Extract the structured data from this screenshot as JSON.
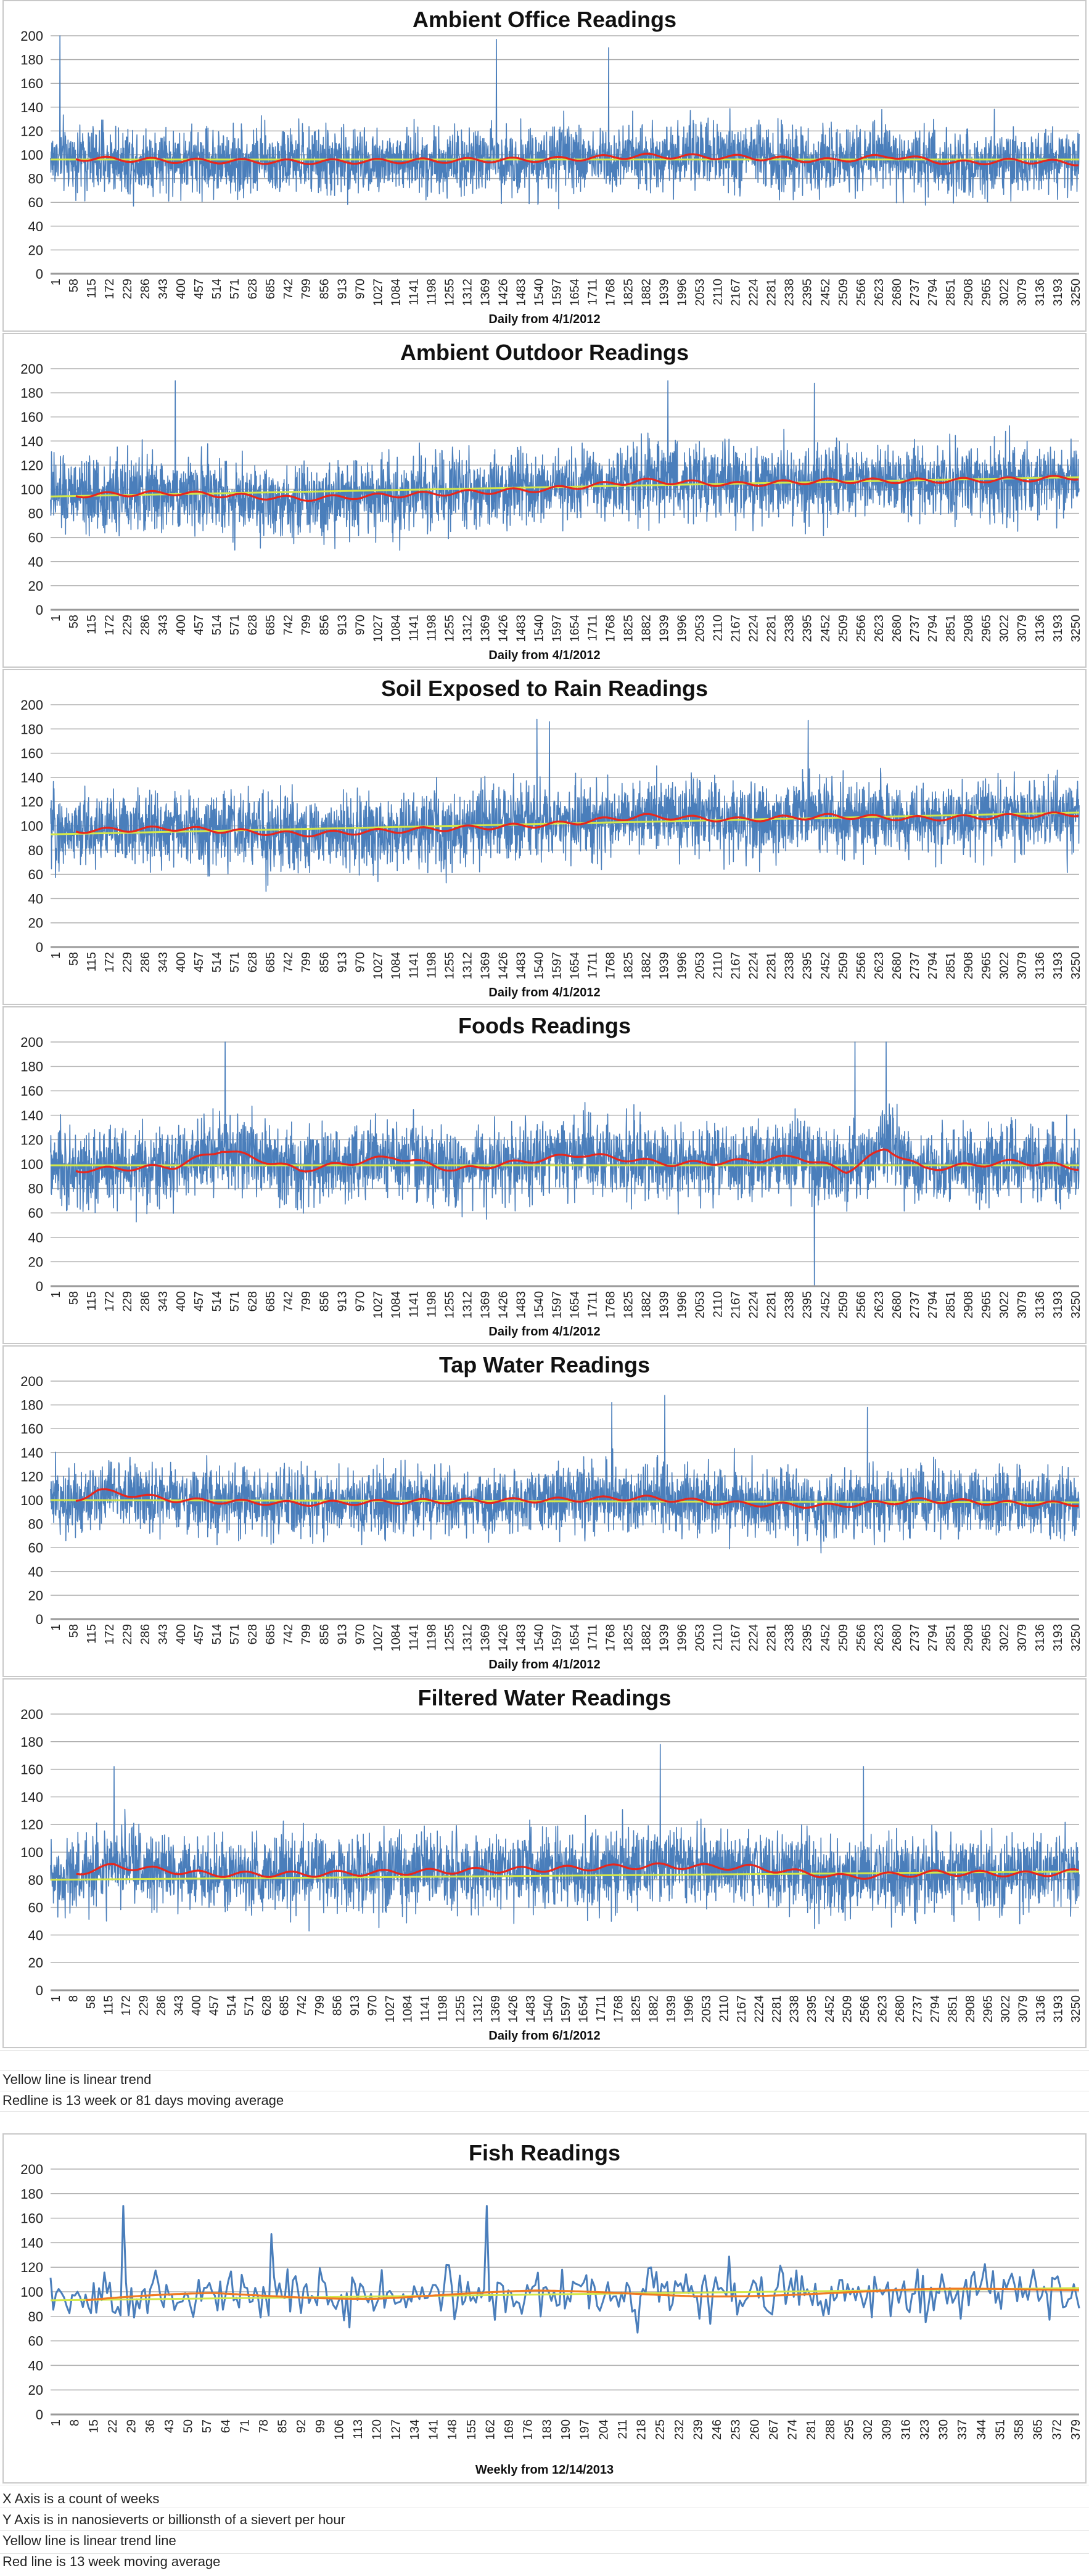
{
  "notes_top": [
    "Yellow line is linear trend",
    "Redline is 13 week or 81 days moving average"
  ],
  "notes_bottom": [
    "X Axis is a count of weeks",
    "Y Axis is in nanosieverts or billionsth of a sievert per hour",
    "Yellow line is linear trend line",
    "Red line is 13 week moving average"
  ],
  "colors": {
    "series": "#4a7ebb",
    "moving_average": "#e8261c",
    "moving_average_fish": "#f07a22",
    "trend": "#d4e84a",
    "grid": "#b0b0b0"
  },
  "chart_data": [
    {
      "type": "line",
      "title": "Ambient Office Readings",
      "xlabel": "Daily from 4/1/2012",
      "ylabel": "",
      "ylim": [
        0,
        200
      ],
      "yticks": [
        0,
        20,
        40,
        60,
        80,
        100,
        120,
        140,
        160,
        180,
        200
      ],
      "x_tick_labels": [
        "1",
        "58",
        "115",
        "172",
        "229",
        "286",
        "343",
        "400",
        "457",
        "514",
        "571",
        "628",
        "685",
        "742",
        "799",
        "856",
        "913",
        "970",
        "1027",
        "1084",
        "1141",
        "1198",
        "1255",
        "1312",
        "1369",
        "1426",
        "1483",
        "1540",
        "1597",
        "1654",
        "1711",
        "1768",
        "1825",
        "1882",
        "1939",
        "1996",
        "2053",
        "2110",
        "2167",
        "2224",
        "2281",
        "2338",
        "2395",
        "2452",
        "2509",
        "2566",
        "2623",
        "2680",
        "2737",
        "2794",
        "2851",
        "2908",
        "2965",
        "3022",
        "3079",
        "3136",
        "3193",
        "3250"
      ],
      "n_points": 3300,
      "mean": 96,
      "spread": 20,
      "peaks": [
        [
          30,
          200
        ],
        [
          1430,
          197
        ],
        [
          1790,
          190
        ]
      ],
      "moving_average": {
        "name": "13 week or 81 days moving average",
        "points": [
          [
            81,
            97
          ],
          [
            400,
            95
          ],
          [
            800,
            94
          ],
          [
            1200,
            95
          ],
          [
            1600,
            96
          ],
          [
            1900,
            99
          ],
          [
            2200,
            98
          ],
          [
            2500,
            95
          ],
          [
            2700,
            99
          ],
          [
            2900,
            93
          ],
          [
            3100,
            95
          ],
          [
            3300,
            93
          ]
        ]
      },
      "trend": {
        "start": 96,
        "end": 96
      }
    },
    {
      "type": "line",
      "title": "Ambient Outdoor Readings",
      "xlabel": "Daily from 4/1/2012",
      "ylabel": "",
      "ylim": [
        0,
        200
      ],
      "yticks": [
        0,
        20,
        40,
        60,
        80,
        100,
        120,
        140,
        160,
        180,
        200
      ],
      "x_tick_labels": [
        "1",
        "58",
        "115",
        "172",
        "229",
        "286",
        "343",
        "400",
        "457",
        "514",
        "571",
        "628",
        "685",
        "742",
        "799",
        "856",
        "913",
        "970",
        "1027",
        "1084",
        "1141",
        "1198",
        "1255",
        "1312",
        "1369",
        "1426",
        "1483",
        "1540",
        "1597",
        "1654",
        "1711",
        "1768",
        "1825",
        "1882",
        "1939",
        "1996",
        "2053",
        "2110",
        "2167",
        "2224",
        "2281",
        "2338",
        "2395",
        "2452",
        "2509",
        "2566",
        "2623",
        "2680",
        "2737",
        "2794",
        "2851",
        "2908",
        "2965",
        "3022",
        "3079",
        "3136",
        "3193",
        "3250"
      ],
      "n_points": 3300,
      "mean": 102,
      "spread": 22,
      "peaks": [
        [
          400,
          190
        ],
        [
          1980,
          190
        ],
        [
          2450,
          188
        ]
      ],
      "moving_average": {
        "name": "13 week or 81 days moving average",
        "points": [
          [
            81,
            95
          ],
          [
            400,
            97
          ],
          [
            800,
            92
          ],
          [
            1200,
            96
          ],
          [
            1600,
            100
          ],
          [
            1900,
            107
          ],
          [
            2200,
            104
          ],
          [
            2500,
            107
          ],
          [
            2800,
            107
          ],
          [
            3100,
            108
          ],
          [
            3300,
            110
          ]
        ]
      },
      "trend": {
        "start": 94,
        "end": 110
      }
    },
    {
      "type": "line",
      "title": "Soil Exposed to Rain Readings",
      "xlabel": "Daily from 4/1/2012",
      "ylabel": "",
      "ylim": [
        0,
        200
      ],
      "yticks": [
        0,
        20,
        40,
        60,
        80,
        100,
        120,
        140,
        160,
        180,
        200
      ],
      "x_tick_labels": [
        "1",
        "58",
        "115",
        "172",
        "229",
        "286",
        "343",
        "400",
        "457",
        "514",
        "571",
        "628",
        "685",
        "742",
        "799",
        "856",
        "913",
        "970",
        "1027",
        "1084",
        "1141",
        "1198",
        "1255",
        "1312",
        "1369",
        "1426",
        "1483",
        "1540",
        "1597",
        "1654",
        "1711",
        "1768",
        "1825",
        "1882",
        "1939",
        "1996",
        "2053",
        "2110",
        "2167",
        "2224",
        "2281",
        "2338",
        "2395",
        "2452",
        "2509",
        "2566",
        "2623",
        "2680",
        "2737",
        "2794",
        "2851",
        "2908",
        "2965",
        "3022",
        "3079",
        "3136",
        "3193",
        "3250"
      ],
      "n_points": 3300,
      "mean": 102,
      "spread": 22,
      "peaks": [
        [
          1560,
          188
        ],
        [
          1600,
          186
        ],
        [
          2430,
          187
        ]
      ],
      "moving_average": {
        "name": "13 week or 81 days moving average",
        "points": [
          [
            81,
            96
          ],
          [
            400,
            98
          ],
          [
            800,
            93
          ],
          [
            1200,
            97
          ],
          [
            1600,
            101
          ],
          [
            1900,
            108
          ],
          [
            2200,
            105
          ],
          [
            2500,
            108
          ],
          [
            2800,
            106
          ],
          [
            3100,
            108
          ],
          [
            3300,
            110
          ]
        ]
      },
      "trend": {
        "start": 93,
        "end": 111
      }
    },
    {
      "type": "line",
      "title": "Foods Readings",
      "xlabel": "Daily from 4/1/2012",
      "ylabel": "",
      "ylim": [
        0,
        200
      ],
      "yticks": [
        0,
        20,
        40,
        60,
        80,
        100,
        120,
        140,
        160,
        180,
        200
      ],
      "x_tick_labels": [
        "1",
        "58",
        "115",
        "172",
        "229",
        "286",
        "343",
        "400",
        "457",
        "514",
        "571",
        "628",
        "685",
        "742",
        "799",
        "856",
        "913",
        "970",
        "1027",
        "1084",
        "1141",
        "1198",
        "1255",
        "1312",
        "1369",
        "1426",
        "1483",
        "1540",
        "1597",
        "1654",
        "1711",
        "1768",
        "1825",
        "1882",
        "1939",
        "1996",
        "2053",
        "2110",
        "2167",
        "2224",
        "2281",
        "2338",
        "2395",
        "2452",
        "2509",
        "2566",
        "2623",
        "2680",
        "2737",
        "2794",
        "2851",
        "2908",
        "2965",
        "3022",
        "3079",
        "3136",
        "3193",
        "3250"
      ],
      "n_points": 3300,
      "mean": 99,
      "spread": 22,
      "peaks": [
        [
          560,
          200
        ],
        [
          2580,
          200
        ],
        [
          2680,
          200
        ]
      ],
      "dips": [
        [
          2450,
          0
        ]
      ],
      "moving_average": {
        "name": "13 week or 81 days moving average",
        "points": [
          [
            81,
            95
          ],
          [
            400,
            98
          ],
          [
            550,
            112
          ],
          [
            800,
            95
          ],
          [
            1100,
            106
          ],
          [
            1300,
            95
          ],
          [
            1700,
            108
          ],
          [
            2000,
            100
          ],
          [
            2200,
            102
          ],
          [
            2400,
            106
          ],
          [
            2550,
            94
          ],
          [
            2680,
            113
          ],
          [
            2800,
            96
          ],
          [
            3100,
            102
          ],
          [
            3300,
            97
          ]
        ]
      },
      "trend": {
        "start": 99,
        "end": 99
      }
    },
    {
      "type": "line",
      "title": "Tap Water Readings",
      "xlabel": "Daily from 4/1/2012",
      "ylabel": "",
      "ylim": [
        0,
        200
      ],
      "yticks": [
        0,
        20,
        40,
        60,
        80,
        100,
        120,
        140,
        160,
        180,
        200
      ],
      "x_tick_labels": [
        "1",
        "58",
        "115",
        "172",
        "229",
        "286",
        "343",
        "400",
        "457",
        "514",
        "571",
        "628",
        "685",
        "742",
        "799",
        "856",
        "913",
        "970",
        "1027",
        "1084",
        "1141",
        "1198",
        "1255",
        "1312",
        "1369",
        "1426",
        "1483",
        "1540",
        "1597",
        "1654",
        "1711",
        "1768",
        "1825",
        "1882",
        "1939",
        "1996",
        "2053",
        "2110",
        "2167",
        "2224",
        "2281",
        "2338",
        "2395",
        "2452",
        "2509",
        "2566",
        "2623",
        "2680",
        "2737",
        "2794",
        "2851",
        "2908",
        "2965",
        "3022",
        "3079",
        "3136",
        "3193",
        "3250"
      ],
      "n_points": 3300,
      "mean": 99,
      "spread": 20,
      "peaks": [
        [
          1800,
          182
        ],
        [
          1970,
          188
        ],
        [
          2620,
          178
        ]
      ],
      "moving_average": {
        "name": "13 week or 81 days moving average",
        "points": [
          [
            81,
            100
          ],
          [
            150,
            108
          ],
          [
            400,
            100
          ],
          [
            800,
            97
          ],
          [
            1200,
            99
          ],
          [
            1600,
            100
          ],
          [
            1900,
            102
          ],
          [
            2200,
            97
          ],
          [
            2500,
            95
          ],
          [
            2800,
            100
          ],
          [
            3100,
            97
          ],
          [
            3300,
            97
          ]
        ]
      },
      "trend": {
        "start": 100,
        "end": 98
      }
    },
    {
      "type": "line",
      "title": "Filtered Water Readings",
      "xlabel": "Daily from 6/1/2012",
      "ylabel": "",
      "ylim": [
        0,
        200
      ],
      "yticks": [
        0,
        20,
        40,
        60,
        80,
        100,
        120,
        140,
        160,
        180,
        200
      ],
      "x_tick_labels": [
        "1",
        "8",
        "58",
        "115",
        "172",
        "229",
        "286",
        "343",
        "400",
        "457",
        "514",
        "571",
        "628",
        "685",
        "742",
        "799",
        "856",
        "913",
        "970",
        "1027",
        "1084",
        "1141",
        "1198",
        "1255",
        "1312",
        "1369",
        "1426",
        "1483",
        "1540",
        "1597",
        "1654",
        "1711",
        "1768",
        "1825",
        "1882",
        "1939",
        "1996",
        "2053",
        "2110",
        "2167",
        "2224",
        "2281",
        "2338",
        "2395",
        "2452",
        "2509",
        "2566",
        "2623",
        "2680",
        "2737",
        "2794",
        "2851",
        "2908",
        "2965",
        "3022",
        "3079",
        "3136",
        "3193",
        "3250"
      ],
      "n_points": 3240,
      "mean": 86,
      "spread": 20,
      "peaks": [
        [
          1920,
          178
        ],
        [
          2560,
          162
        ],
        [
          200,
          162
        ]
      ],
      "moving_average": {
        "name": "13 week or 81 days moving average",
        "points": [
          [
            81,
            85
          ],
          [
            200,
            90
          ],
          [
            500,
            84
          ],
          [
            800,
            84
          ],
          [
            1200,
            86
          ],
          [
            1600,
            88
          ],
          [
            1900,
            90
          ],
          [
            2200,
            89
          ],
          [
            2500,
            82
          ],
          [
            2800,
            85
          ],
          [
            3100,
            84
          ],
          [
            3240,
            86
          ]
        ]
      },
      "trend": {
        "start": 80,
        "end": 86
      }
    },
    {
      "type": "line",
      "title": "Fish Readings",
      "xlabel": "Weekly from 12/14/2013",
      "ylabel": "",
      "ylim": [
        0,
        200
      ],
      "yticks": [
        0,
        20,
        40,
        60,
        80,
        100,
        120,
        140,
        160,
        180,
        200
      ],
      "x_tick_labels": [
        "1",
        "8",
        "15",
        "22",
        "29",
        "36",
        "43",
        "50",
        "57",
        "64",
        "71",
        "78",
        "85",
        "92",
        "99",
        "106",
        "113",
        "120",
        "127",
        "134",
        "141",
        "148",
        "155",
        "162",
        "169",
        "176",
        "183",
        "190",
        "197",
        "204",
        "211",
        "218",
        "225",
        "232",
        "239",
        "246",
        "253",
        "260",
        "267",
        "274",
        "281",
        "288",
        "295",
        "302",
        "309",
        "316",
        "323",
        "330",
        "337",
        "344",
        "351",
        "358",
        "365",
        "372",
        "379"
      ],
      "n_points": 383,
      "mean": 98,
      "spread": 15,
      "peaks": [
        [
          27,
          170
        ],
        [
          162,
          170
        ],
        [
          82,
          147
        ]
      ],
      "moving_average": {
        "name": "13 week moving average",
        "points": [
          [
            13,
            92
          ],
          [
            60,
            98
          ],
          [
            120,
            96
          ],
          [
            180,
            99
          ],
          [
            240,
            98
          ],
          [
            300,
            99
          ],
          [
            383,
            103
          ]
        ]
      },
      "trend": {
        "start": 93,
        "end": 103
      }
    }
  ]
}
